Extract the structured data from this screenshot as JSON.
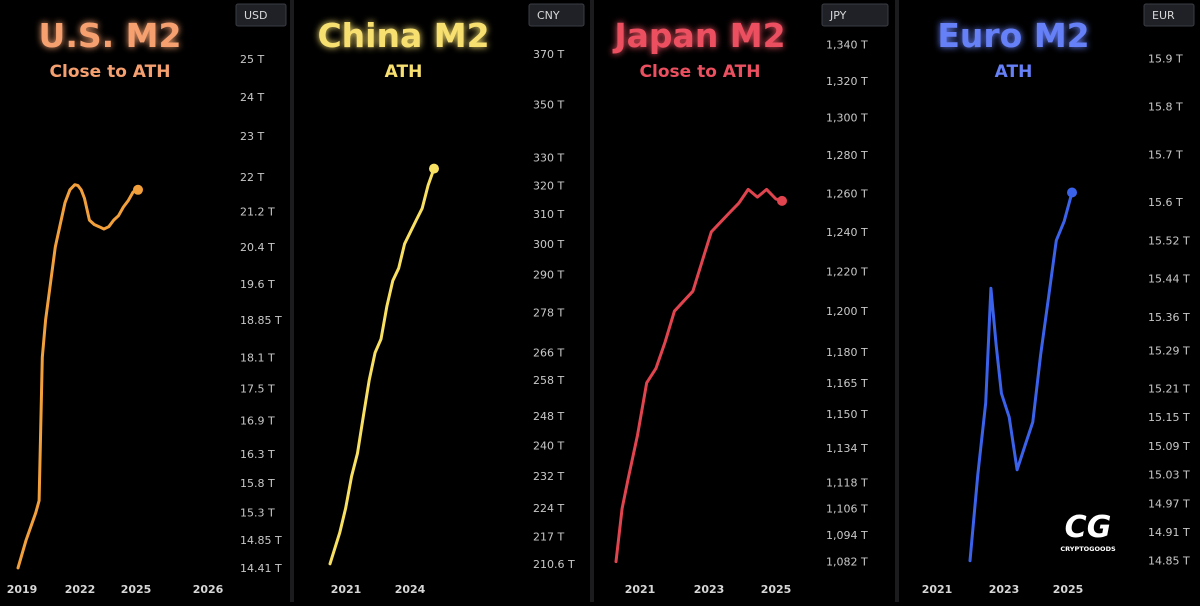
{
  "chart_data": [
    {
      "type": "line",
      "title": "U.S. M2",
      "subtitle": "Close to ATH",
      "currency": "USD",
      "color": "#f2a03c",
      "title_color": "#f6a070",
      "x_ticks": [
        "2019",
        "2022",
        "2025",
        "2026"
      ],
      "y_ticks": [
        "25 T",
        "24 T",
        "23 T",
        "22 T",
        "21.2 T",
        "20.4 T",
        "19.6 T",
        "18.85 T",
        "18.1 T",
        "17.5 T",
        "16.9 T",
        "16.3 T",
        "15.8 T",
        "15.3 T",
        "14.85 T",
        "14.41 T"
      ],
      "y_scale": "log",
      "ylim": [
        14.3,
        25.8
      ],
      "x": [
        "2019-01",
        "2019-06",
        "2019-12",
        "2020-02",
        "2020-04",
        "2020-06",
        "2020-09",
        "2020-12",
        "2021-03",
        "2021-06",
        "2021-09",
        "2021-12",
        "2022-02",
        "2022-04",
        "2022-06",
        "2022-09",
        "2022-12",
        "2023-03",
        "2023-06",
        "2023-09",
        "2023-12",
        "2024-03",
        "2024-06",
        "2024-09",
        "2024-12",
        "2025-03"
      ],
      "values": [
        14.41,
        14.85,
        15.3,
        15.5,
        18.1,
        18.85,
        19.6,
        20.4,
        20.9,
        21.4,
        21.7,
        21.82,
        21.8,
        21.7,
        21.5,
        21.0,
        20.9,
        20.85,
        20.8,
        20.85,
        21.0,
        21.1,
        21.3,
        21.45,
        21.65,
        21.7
      ],
      "end_marker": true
    },
    {
      "type": "line",
      "title": "China M2",
      "subtitle": "ATH",
      "currency": "CNY",
      "color": "#f8e062",
      "title_color": "#f8e070",
      "x_ticks": [
        "2021",
        "2024"
      ],
      "y_ticks": [
        "370 T",
        "350 T",
        "330 T",
        "320 T",
        "310 T",
        "300 T",
        "290 T",
        "278 T",
        "266 T",
        "258 T",
        "248 T",
        "240 T",
        "232 T",
        "224 T",
        "217 T",
        "210.6 T"
      ],
      "y_scale": "log",
      "ylim": [
        208,
        380
      ],
      "x": [
        "2020-10",
        "2021-03",
        "2021-06",
        "2021-09",
        "2021-12",
        "2022-03",
        "2022-06",
        "2022-09",
        "2022-12",
        "2023-03",
        "2023-06",
        "2023-09",
        "2023-12",
        "2024-03",
        "2024-06",
        "2024-09",
        "2024-12",
        "2025-03"
      ],
      "values": [
        210.6,
        218,
        224,
        232,
        238,
        248,
        258,
        266,
        270,
        280,
        288,
        292,
        300,
        304,
        308,
        312,
        320,
        326
      ],
      "end_marker": true
    },
    {
      "type": "line",
      "title": "Japan M2",
      "subtitle": "Close to ATH",
      "currency": "JPY",
      "color": "#e0444e",
      "title_color": "#ec5060",
      "x_ticks": [
        "2021",
        "2023",
        "2025"
      ],
      "y_ticks": [
        "1,340 T",
        "1,320 T",
        "1,300 T",
        "1,280 T",
        "1,260 T",
        "1,240 T",
        "1,220 T",
        "1,200 T",
        "1,180 T",
        "1,165 T",
        "1,150 T",
        "1,134 T",
        "1,118 T",
        "1,106 T",
        "1,094 T",
        "1,082 T"
      ],
      "y_scale": "log",
      "ylim": [
        1076,
        1348
      ],
      "x": [
        "2020-08",
        "2020-10",
        "2020-12",
        "2021-03",
        "2021-06",
        "2021-09",
        "2021-12",
        "2022-03",
        "2022-06",
        "2022-09",
        "2022-12",
        "2023-03",
        "2023-06",
        "2023-09",
        "2023-12",
        "2024-03",
        "2024-06",
        "2024-09",
        "2024-12",
        "2025-02"
      ],
      "values": [
        1082,
        1106,
        1120,
        1140,
        1165,
        1172,
        1185,
        1200,
        1205,
        1210,
        1225,
        1240,
        1245,
        1250,
        1255,
        1262,
        1258,
        1262,
        1257,
        1256
      ],
      "end_marker": true
    },
    {
      "type": "line",
      "title": "Euro M2",
      "subtitle": "ATH",
      "currency": "EUR",
      "color": "#3b62ea",
      "title_color": "#6680f8",
      "x_ticks": [
        "2021",
        "2023",
        "2025"
      ],
      "y_ticks": [
        "15.9 T",
        "15.8 T",
        "15.7 T",
        "15.6 T",
        "15.52 T",
        "15.44 T",
        "15.36 T",
        "15.29 T",
        "15.21 T",
        "15.15 T",
        "15.09 T",
        "15.03 T",
        "14.97 T",
        "14.91 T",
        "14.85 T"
      ],
      "y_scale": "linear",
      "ylim": [
        14.82,
        15.96
      ],
      "x": [
        "2021-12",
        "2022-03",
        "2022-06",
        "2022-08",
        "2022-10",
        "2022-12",
        "2023-03",
        "2023-06",
        "2023-09",
        "2023-12",
        "2024-03",
        "2024-06",
        "2024-09",
        "2024-12",
        "2025-03"
      ],
      "values": [
        14.85,
        15.03,
        15.18,
        15.42,
        15.3,
        15.2,
        15.15,
        15.04,
        15.09,
        15.14,
        15.28,
        15.4,
        15.52,
        15.56,
        15.62
      ],
      "end_marker": true
    }
  ],
  "logo": {
    "mark": "CG",
    "text": "CRYPTOGOODS"
  }
}
